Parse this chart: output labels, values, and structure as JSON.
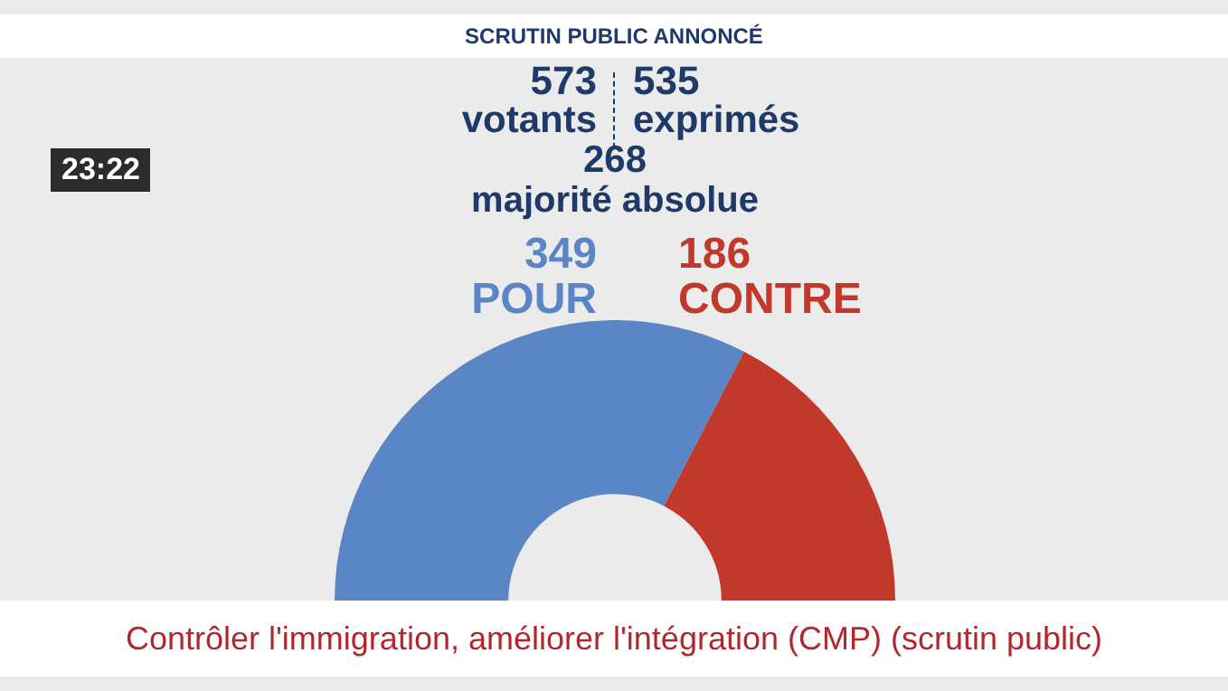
{
  "chart_data": {
    "type": "donut",
    "title": "SCRUTIN PUBLIC ANNONCÉ",
    "subtitle": "Contrôler l'immigration, améliorer l'intégration (CMP) (scrutin public)",
    "annotations": [
      "573 votants",
      "535 exprimés",
      "268 majorité absolue",
      "23:22"
    ],
    "categories": [
      "POUR",
      "CONTRE"
    ],
    "values": [
      349,
      186
    ],
    "colors": [
      "#5b86c5",
      "#c0392b"
    ],
    "data_labels": true,
    "legend": false
  }
}
